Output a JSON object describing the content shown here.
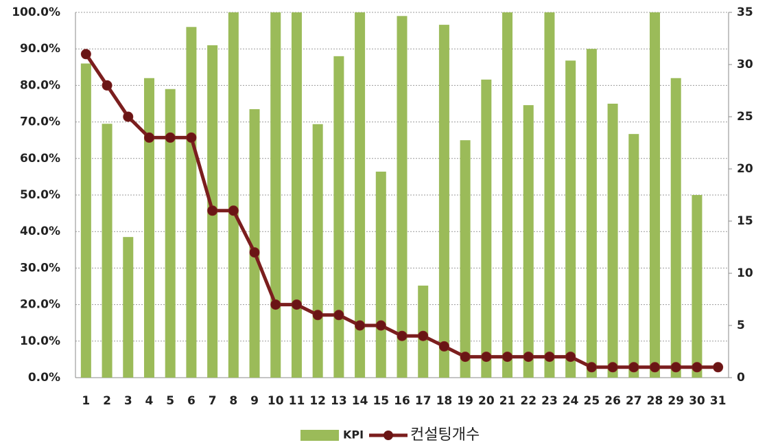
{
  "chart_data": {
    "type": "bar",
    "categories": [
      "1",
      "2",
      "3",
      "4",
      "5",
      "6",
      "7",
      "8",
      "9",
      "10",
      "11",
      "12",
      "13",
      "14",
      "15",
      "16",
      "17",
      "18",
      "19",
      "20",
      "21",
      "22",
      "23",
      "24",
      "25",
      "26",
      "27",
      "28",
      "29",
      "30",
      "31"
    ],
    "series": [
      {
        "name": "KPI",
        "type": "bar",
        "color": "#9bbb59",
        "values": [
          86,
          69.5,
          38.5,
          82,
          79,
          96,
          91,
          100,
          73.5,
          100,
          100,
          69.4,
          88,
          100,
          56.4,
          99,
          25.2,
          96.6,
          65,
          81.6,
          100,
          74.6,
          100,
          86.8,
          90,
          75,
          66.7,
          100,
          82,
          50,
          0
        ]
      },
      {
        "name": "컨설팅개수",
        "type": "line",
        "axis": "y2",
        "color": "#7b1e1e",
        "values": [
          31,
          28,
          25,
          23,
          23,
          23,
          16,
          16,
          12,
          7,
          7,
          6,
          6,
          5,
          5,
          4,
          4,
          3,
          2,
          2,
          2,
          2,
          2,
          2,
          1,
          1,
          1,
          1,
          1,
          1,
          1
        ]
      }
    ],
    "ylim": [
      0,
      100
    ],
    "yticks": [
      {
        "value": 0,
        "label": "0.0%"
      },
      {
        "value": 10,
        "label": "10.0%"
      },
      {
        "value": 20,
        "label": "20.0%"
      },
      {
        "value": 30,
        "label": "30.0%"
      },
      {
        "value": 40,
        "label": "40.0%"
      },
      {
        "value": 50,
        "label": "50.0%"
      },
      {
        "value": 60,
        "label": "60.0%"
      },
      {
        "value": 70,
        "label": "70.0%"
      },
      {
        "value": 80,
        "label": "80.0%"
      },
      {
        "value": 90,
        "label": "90.0%"
      },
      {
        "value": 100,
        "label": "100.0%"
      }
    ],
    "y2lim": [
      0,
      35
    ],
    "y2ticks": [
      0,
      5,
      10,
      15,
      20,
      25,
      30,
      35
    ],
    "grid": true,
    "legend": "bottom"
  }
}
